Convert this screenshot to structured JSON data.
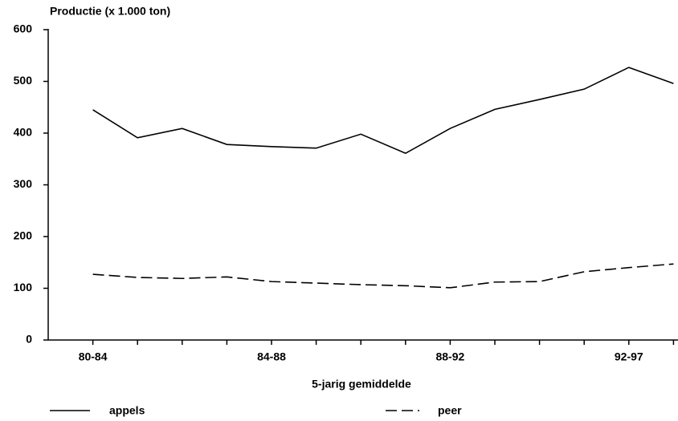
{
  "chart_data": {
    "type": "line",
    "title": "Productie (x 1.000 ton)",
    "x_label": "5-jarig gemiddelde",
    "categories": [
      "80-84",
      null,
      null,
      null,
      "84-88",
      null,
      null,
      null,
      "88-92",
      null,
      null,
      null,
      "92-97",
      null
    ],
    "series": [
      {
        "name": "appels",
        "color": "#000000",
        "dash": "solid",
        "values": [
          445,
          391,
          409,
          378,
          374,
          371,
          398,
          361,
          409,
          446,
          465,
          485,
          527,
          496
        ]
      },
      {
        "name": "peer",
        "color": "#000000",
        "dash": "dashed",
        "values": [
          127,
          121,
          119,
          122,
          113,
          110,
          107,
          105,
          101,
          112,
          113,
          132,
          140,
          147
        ]
      }
    ],
    "ylim": [
      0,
      600
    ],
    "yticks": [
      0,
      100,
      200,
      300,
      400,
      500,
      600
    ],
    "grid": false,
    "legend": "bottom"
  }
}
